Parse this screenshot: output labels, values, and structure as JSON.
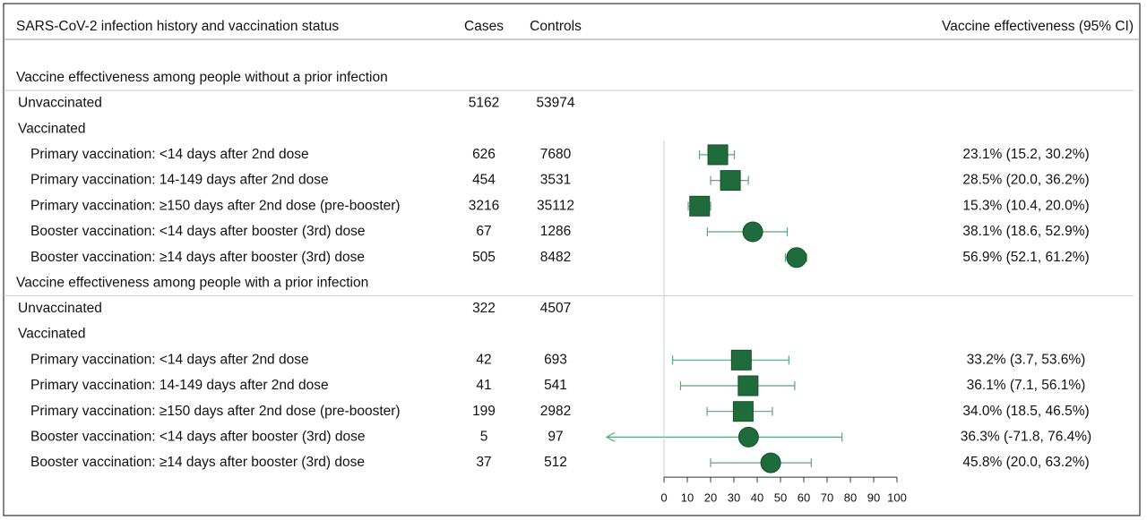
{
  "chart_data": {
    "type": "forest",
    "columns": {
      "label": "SARS-CoV-2 infection history and vaccination status",
      "cases": "Cases",
      "controls": "Controls",
      "effect": "Vaccine effectiveness (95% CI)"
    },
    "xlim": [
      0,
      100
    ],
    "xticks": [
      0,
      10,
      20,
      30,
      40,
      50,
      60,
      70,
      80,
      90,
      100
    ],
    "color": "#1f6b3b",
    "ci_color": "#5aa878",
    "sections": [
      {
        "title": "Vaccine effectiveness among people without a prior infection",
        "unvaccinated": {
          "label": "Unvaccinated",
          "cases": 5162,
          "controls": 53974
        },
        "vaccinated": {
          "label": "Vaccinated",
          "rows": [
            {
              "label": "Primary vaccination: <14 days after 2nd dose",
              "cases": 626,
              "controls": 7680,
              "ve": 23.1,
              "lower": 15.2,
              "upper": 30.2,
              "value_label": "23.1% (15.2, 30.2%)",
              "marker": "square"
            },
            {
              "label": "Primary vaccination: 14-149 days after 2nd dose",
              "cases": 454,
              "controls": 3531,
              "ve": 28.5,
              "lower": 20.0,
              "upper": 36.2,
              "value_label": "28.5% (20.0, 36.2%)",
              "marker": "square"
            },
            {
              "label": "Primary vaccination: ≥150 days after 2nd dose (pre-booster)",
              "cases": 3216,
              "controls": 35112,
              "ve": 15.3,
              "lower": 10.4,
              "upper": 20.0,
              "value_label": "15.3% (10.4, 20.0%)",
              "marker": "square"
            },
            {
              "label": "Booster vaccination: <14 days after booster (3rd) dose",
              "cases": 67,
              "controls": 1286,
              "ve": 38.1,
              "lower": 18.6,
              "upper": 52.9,
              "value_label": "38.1% (18.6, 52.9%)",
              "marker": "circle"
            },
            {
              "label": "Booster vaccination: ≥14 days after booster (3rd) dose",
              "cases": 505,
              "controls": 8482,
              "ve": 56.9,
              "lower": 52.1,
              "upper": 61.2,
              "value_label": "56.9% (52.1, 61.2%)",
              "marker": "circle"
            }
          ]
        }
      },
      {
        "title": "Vaccine effectiveness among people with a prior infection",
        "unvaccinated": {
          "label": "Unvaccinated",
          "cases": 322,
          "controls": 4507
        },
        "vaccinated": {
          "label": "Vaccinated",
          "rows": [
            {
              "label": "Primary vaccination: <14 days after 2nd dose",
              "cases": 42,
              "controls": 693,
              "ve": 33.2,
              "lower": 3.7,
              "upper": 53.6,
              "value_label": "33.2% (3.7, 53.6%)",
              "marker": "square"
            },
            {
              "label": "Primary vaccination: 14-149 days after 2nd dose",
              "cases": 41,
              "controls": 541,
              "ve": 36.1,
              "lower": 7.1,
              "upper": 56.1,
              "value_label": "36.1% (7.1, 56.1%)",
              "marker": "square"
            },
            {
              "label": "Primary vaccination: ≥150 days after 2nd dose (pre-booster)",
              "cases": 199,
              "controls": 2982,
              "ve": 34.0,
              "lower": 18.5,
              "upper": 46.5,
              "value_label": "34.0% (18.5, 46.5%)",
              "marker": "square"
            },
            {
              "label": "Booster vaccination: <14 days after booster (3rd) dose",
              "cases": 5,
              "controls": 97,
              "ve": 36.3,
              "lower": -71.8,
              "upper": 76.4,
              "value_label": "36.3% (-71.8, 76.4%)",
              "marker": "circle"
            },
            {
              "label": "Booster vaccination: ≥14 days after booster (3rd) dose",
              "cases": 37,
              "controls": 512,
              "ve": 45.8,
              "lower": 20.0,
              "upper": 63.2,
              "value_label": "45.8% (20.0, 63.2%)",
              "marker": "circle"
            }
          ]
        }
      }
    ]
  }
}
